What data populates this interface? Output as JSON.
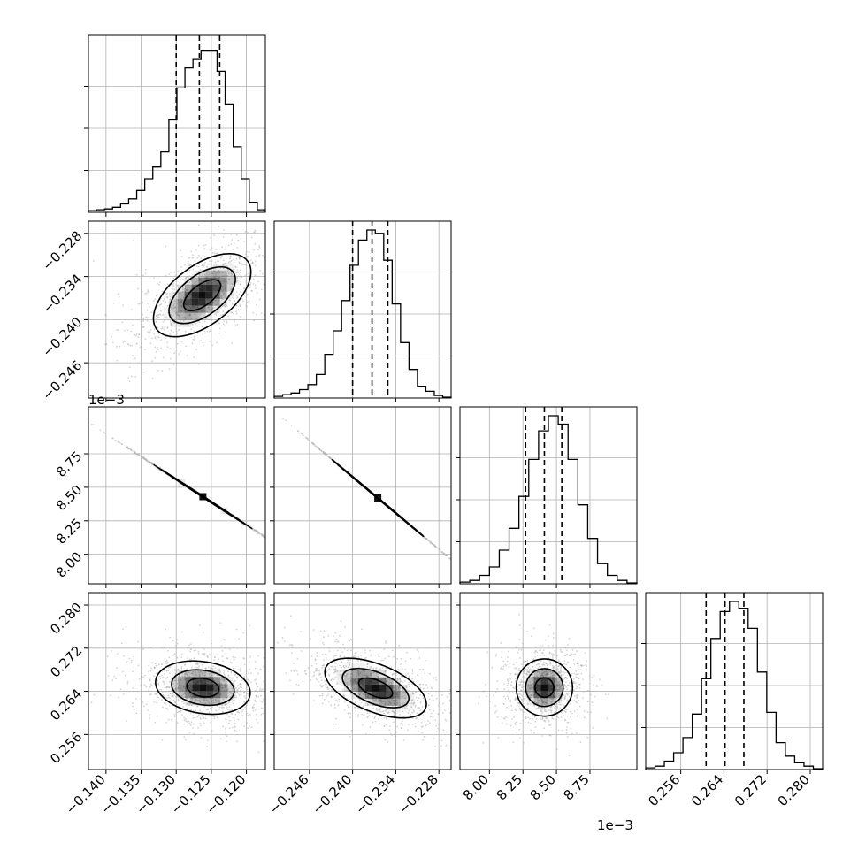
{
  "chart_data": {
    "type": "corner",
    "parameters": [
      {
        "index": 0,
        "range": [
          -0.1425,
          -0.1173
        ],
        "ticks": [
          -0.14,
          -0.135,
          -0.13,
          -0.125,
          -0.12
        ],
        "tick_labels": [
          "−0.140",
          "−0.135",
          "−0.130",
          "−0.125",
          "−0.120"
        ],
        "offset_label": "",
        "quantiles": [
          -0.13,
          -0.1267,
          -0.1238
        ]
      },
      {
        "index": 1,
        "range": [
          -0.2509,
          -0.2263
        ],
        "ticks": [
          -0.246,
          -0.24,
          -0.234,
          -0.228
        ],
        "tick_labels": [
          "−0.246",
          "−0.240",
          "−0.234",
          "−0.228"
        ],
        "offset_label": "",
        "quantiles": [
          -0.24,
          -0.2373,
          -0.2351
        ]
      },
      {
        "index": 2,
        "range": [
          7.78,
          9.1
        ],
        "ticks": [
          8.0,
          8.25,
          8.5,
          8.75
        ],
        "tick_labels": [
          "8.00",
          "8.25",
          "8.50",
          "8.75"
        ],
        "offset_label": "1e−3",
        "quantiles": [
          8.27,
          8.41,
          8.54
        ]
      },
      {
        "index": 3,
        "range": [
          0.2495,
          0.2823
        ],
        "ticks": [
          0.256,
          0.264,
          0.272,
          0.28
        ],
        "tick_labels": [
          "0.256",
          "0.264",
          "0.272",
          "0.280"
        ],
        "offset_label": "",
        "quantiles": [
          0.2607,
          0.2642,
          0.2677
        ]
      }
    ],
    "histograms": [
      [
        0.01,
        0.015,
        0.02,
        0.03,
        0.05,
        0.08,
        0.13,
        0.2,
        0.27,
        0.36,
        0.55,
        0.74,
        0.86,
        0.91,
        0.96,
        0.96,
        0.84,
        0.64,
        0.39,
        0.2,
        0.06,
        0.015
      ],
      [
        0.01,
        0.02,
        0.03,
        0.05,
        0.08,
        0.14,
        0.26,
        0.4,
        0.58,
        0.79,
        0.94,
        1.0,
        0.98,
        0.82,
        0.56,
        0.33,
        0.17,
        0.07,
        0.04,
        0.015,
        0.005
      ],
      [
        0.01,
        0.02,
        0.05,
        0.1,
        0.2,
        0.33,
        0.52,
        0.74,
        0.91,
        1.0,
        0.95,
        0.74,
        0.47,
        0.27,
        0.12,
        0.05,
        0.02,
        0.005
      ],
      [
        0.01,
        0.02,
        0.05,
        0.1,
        0.19,
        0.33,
        0.54,
        0.78,
        0.94,
        1.0,
        0.96,
        0.84,
        0.58,
        0.34,
        0.16,
        0.08,
        0.04,
        0.02,
        0.005
      ]
    ],
    "pairs": [
      {
        "x": 0,
        "y": 1,
        "center": [
          -0.1263,
          -0.2366
        ],
        "scatter_extent": [
          0.0085,
          0.0068
        ],
        "angle_deg": 37,
        "contours": [
          [
            0.0081,
            0.0041
          ],
          [
            0.0055,
            0.0028
          ],
          [
            0.0031,
            0.00145
          ]
        ]
      },
      {
        "x": 0,
        "y": 2,
        "center": [
          -0.1262,
          8.43
        ],
        "scatter_extent": [
          0.0105,
          0.33
        ],
        "angle_deg": -33,
        "contours": [
          [
            0.0084,
            0.0042
          ],
          [
            0.0056,
            0.0029
          ],
          [
            0.0029,
            0.0015
          ]
        ]
      },
      {
        "x": 1,
        "y": 2,
        "center": [
          -0.2365,
          8.42
        ],
        "scatter_extent": [
          0.0095,
          0.33
        ],
        "angle_deg": -40,
        "contours": [
          [
            0.0083,
            0.0031
          ],
          [
            0.0056,
            0.0021
          ],
          [
            0.0029,
            0.0011
          ]
        ]
      },
      {
        "x": 0,
        "y": 3,
        "center": [
          -0.1262,
          0.2647
        ],
        "scatter_extent": [
          0.0102,
          0.0085
        ],
        "angle_deg": -9,
        "contours": [
          [
            0.0068,
            0.0048
          ],
          [
            0.0045,
            0.0032
          ],
          [
            0.0023,
            0.0017
          ]
        ]
      },
      {
        "x": 1,
        "y": 3,
        "center": [
          -0.2368,
          0.2646
        ],
        "scatter_extent": [
          0.0095,
          0.0085
        ],
        "angle_deg": -22,
        "contours": [
          [
            0.0075,
            0.0044
          ],
          [
            0.0049,
            0.0029
          ],
          [
            0.0025,
            0.0015
          ]
        ]
      },
      {
        "x": 2,
        "y": 3,
        "center": [
          8.41,
          0.2647
        ],
        "scatter_extent": [
          0.34,
          0.0085
        ],
        "angle_deg": 8,
        "contours": [
          [
            0.21,
            0.0053
          ],
          [
            0.14,
            0.0035
          ],
          [
            0.07,
            0.0018
          ]
        ]
      }
    ],
    "grid": true,
    "colors": {
      "scatter": "#b0b0b0",
      "line": "#000000",
      "density": "#000000"
    }
  }
}
